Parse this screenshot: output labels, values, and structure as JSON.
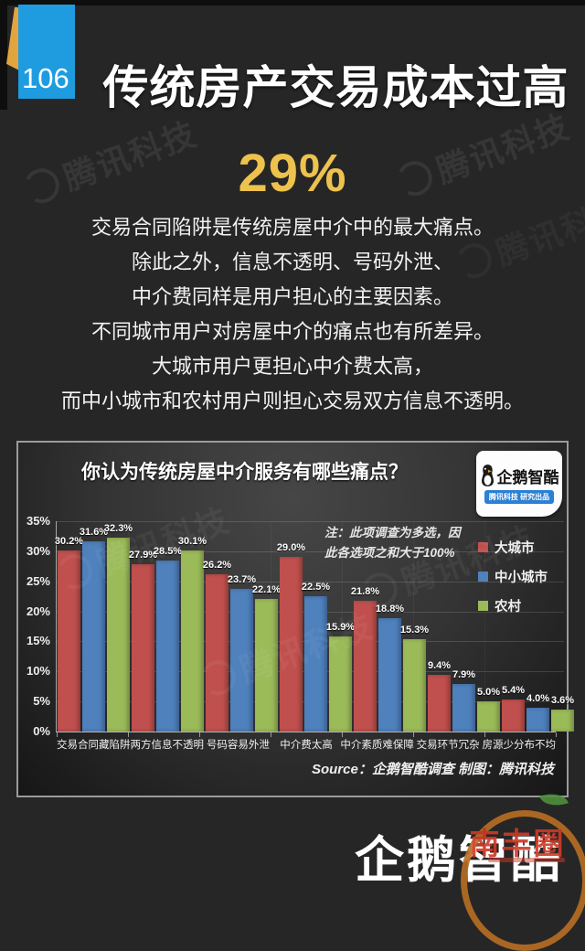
{
  "page": {
    "number": "106",
    "title": "传统房产交易成本过高"
  },
  "hero": {
    "stat": "29%",
    "lines": [
      "交易合同陷阱是传统房屋中介中的最大痛点。",
      "除此之外，信息不透明、号码外泄、",
      "中介费同样是用户担心的主要因素。",
      "不同城市用户对房屋中介的痛点也有所差异。",
      "大城市用户更担心中介费太高，",
      "而中小城市和农村用户则担心交易双方信息不透明。"
    ]
  },
  "chart": {
    "title": "你认为传统房屋中介服务有哪些痛点？",
    "note_line1": "注：此项调查为多选，因",
    "note_line2": "此各选项之和大于100%",
    "source": "Source：企鹅智酷调查  制图：腾讯科技",
    "badge": {
      "name": "企鹅智酷",
      "sub": "腾讯科技 研究出品"
    }
  },
  "chart_data": {
    "type": "bar",
    "categories": [
      "交易合同藏陷阱",
      "两方信息不透明",
      "号码容易外泄",
      "中介费太高",
      "中介素质难保障",
      "交易环节冗杂",
      "房源少分布不均"
    ],
    "series": [
      {
        "name": "大城市",
        "color": "#c0504d",
        "values": [
          30.2,
          27.9,
          26.2,
          29.0,
          21.8,
          9.4,
          5.4
        ]
      },
      {
        "name": "中小城市",
        "color": "#4f81bd",
        "values": [
          31.6,
          28.5,
          23.7,
          22.5,
          18.8,
          7.9,
          4.0
        ]
      },
      {
        "name": "农村",
        "color": "#9bbb59",
        "values": [
          32.3,
          30.1,
          22.1,
          15.9,
          15.3,
          5.0,
          3.6
        ]
      }
    ],
    "ylim": [
      0,
      35
    ],
    "ytick_step": 5,
    "ytick_suffix": "%",
    "value_suffix": "%",
    "grid": "horizontal",
    "legend_position": "right-inside"
  },
  "watermark": {
    "text": "腾讯科技"
  },
  "footer": {
    "brand": "企鹅智酷",
    "stamp_text": "南丰圈"
  },
  "colors": {
    "accent_yellow": "#edc24d",
    "page_number_blue": "#1e9cdf",
    "panel_border": "#9b9b9b",
    "bar_big_city": "#c0504d",
    "bar_mid_city": "#4f81bd",
    "bar_rural": "#9bbb59"
  }
}
